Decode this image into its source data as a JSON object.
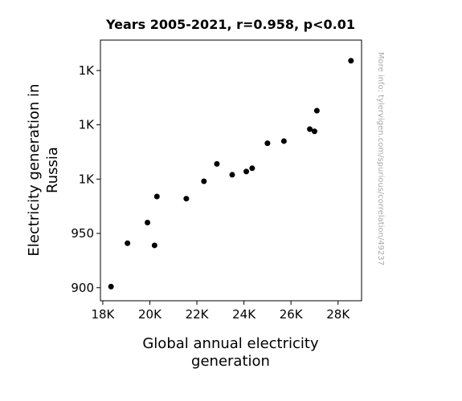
{
  "chart_data": {
    "type": "scatter",
    "title": "Years 2005-2021, r=0.958, p<0.01",
    "xlabel_lines": [
      "Global annual electricity",
      "generation"
    ],
    "ylabel_lines": [
      "Electricity generation in",
      "Russia"
    ],
    "side_note": "More info: tylervigen.com/spurious/correlation/49237",
    "xlim": [
      17900,
      29000
    ],
    "ylim": [
      888,
      1128
    ],
    "x_ticks": [
      {
        "value": 18000,
        "label": "18K"
      },
      {
        "value": 20000,
        "label": "20K"
      },
      {
        "value": 22000,
        "label": "22K"
      },
      {
        "value": 24000,
        "label": "24K"
      },
      {
        "value": 26000,
        "label": "26K"
      },
      {
        "value": 28000,
        "label": "28K"
      }
    ],
    "y_ticks": [
      {
        "value": 900,
        "label": "900"
      },
      {
        "value": 950,
        "label": "950"
      },
      {
        "value": 1000,
        "label": "1K"
      },
      {
        "value": 1050,
        "label": "1K"
      },
      {
        "value": 1100,
        "label": "1K"
      }
    ],
    "points": [
      {
        "x": 18350,
        "y": 901
      },
      {
        "x": 19050,
        "y": 941
      },
      {
        "x": 19900,
        "y": 960
      },
      {
        "x": 20200,
        "y": 939
      },
      {
        "x": 20300,
        "y": 984
      },
      {
        "x": 21550,
        "y": 982
      },
      {
        "x": 22300,
        "y": 998
      },
      {
        "x": 22850,
        "y": 1014
      },
      {
        "x": 23500,
        "y": 1004
      },
      {
        "x": 24100,
        "y": 1007
      },
      {
        "x": 24350,
        "y": 1010
      },
      {
        "x": 25000,
        "y": 1033
      },
      {
        "x": 25700,
        "y": 1035
      },
      {
        "x": 26800,
        "y": 1046
      },
      {
        "x": 27000,
        "y": 1044
      },
      {
        "x": 27100,
        "y": 1063
      },
      {
        "x": 28550,
        "y": 1109
      }
    ],
    "marker_color": "#000000",
    "grid": false,
    "legend": "none"
  }
}
